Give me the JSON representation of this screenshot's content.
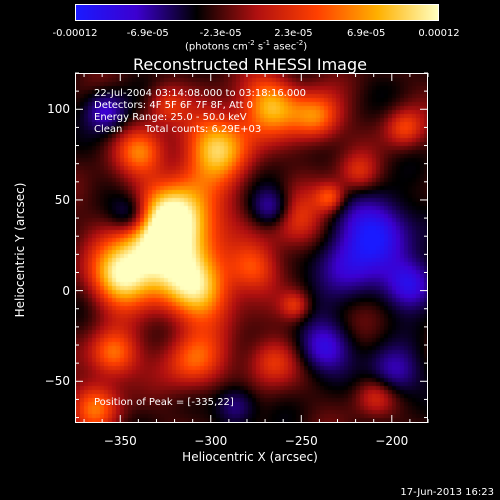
{
  "colorbar": {
    "ticks": [
      "-0.00012",
      "-6.9e-05",
      "-2.3e-05",
      "2.3e-05",
      "6.9e-05",
      "0.00012"
    ],
    "units": {
      "main": "(photons cm",
      "exp1": "-2",
      "mid1": " s",
      "exp2": "-1",
      "mid2": " asec",
      "exp3": "-2",
      "end": ")"
    },
    "colors": [
      "#1a1aff",
      "#3c00d0",
      "#000000",
      "#b01010",
      "#ff4000",
      "#ffb000",
      "#ffffc0"
    ]
  },
  "title": "Reconstructed RHESSI Image",
  "info": {
    "line1": "22-Jul-2004 03:14:08.000 to 03:18:16.000",
    "line2": "Detectors: 4F 5F 6F 7F 8F, Att 0",
    "line3": "Energy Range: 25.0 - 50.0 keV",
    "line4_a": "Clean",
    "line4_b": "Total counts: 6.29E+03",
    "peak": "Position of Peak = [-335,22]"
  },
  "timestamp": "17-Jun-2013 16:23",
  "chart_data": {
    "type": "heatmap",
    "title": "Reconstructed RHESSI Image",
    "xlabel": "Heliocentric X (arcsec)",
    "ylabel": "Heliocentric Y (arcsec)",
    "xlim": [
      -375,
      -180
    ],
    "ylim": [
      -73,
      120
    ],
    "xticks": [
      -350,
      -300,
      -250,
      -200
    ],
    "yticks": [
      -50,
      0,
      50,
      100
    ],
    "colorbar_range": [
      -0.00012,
      0.00012
    ],
    "peak_position": [
      -335,
      22
    ]
  }
}
